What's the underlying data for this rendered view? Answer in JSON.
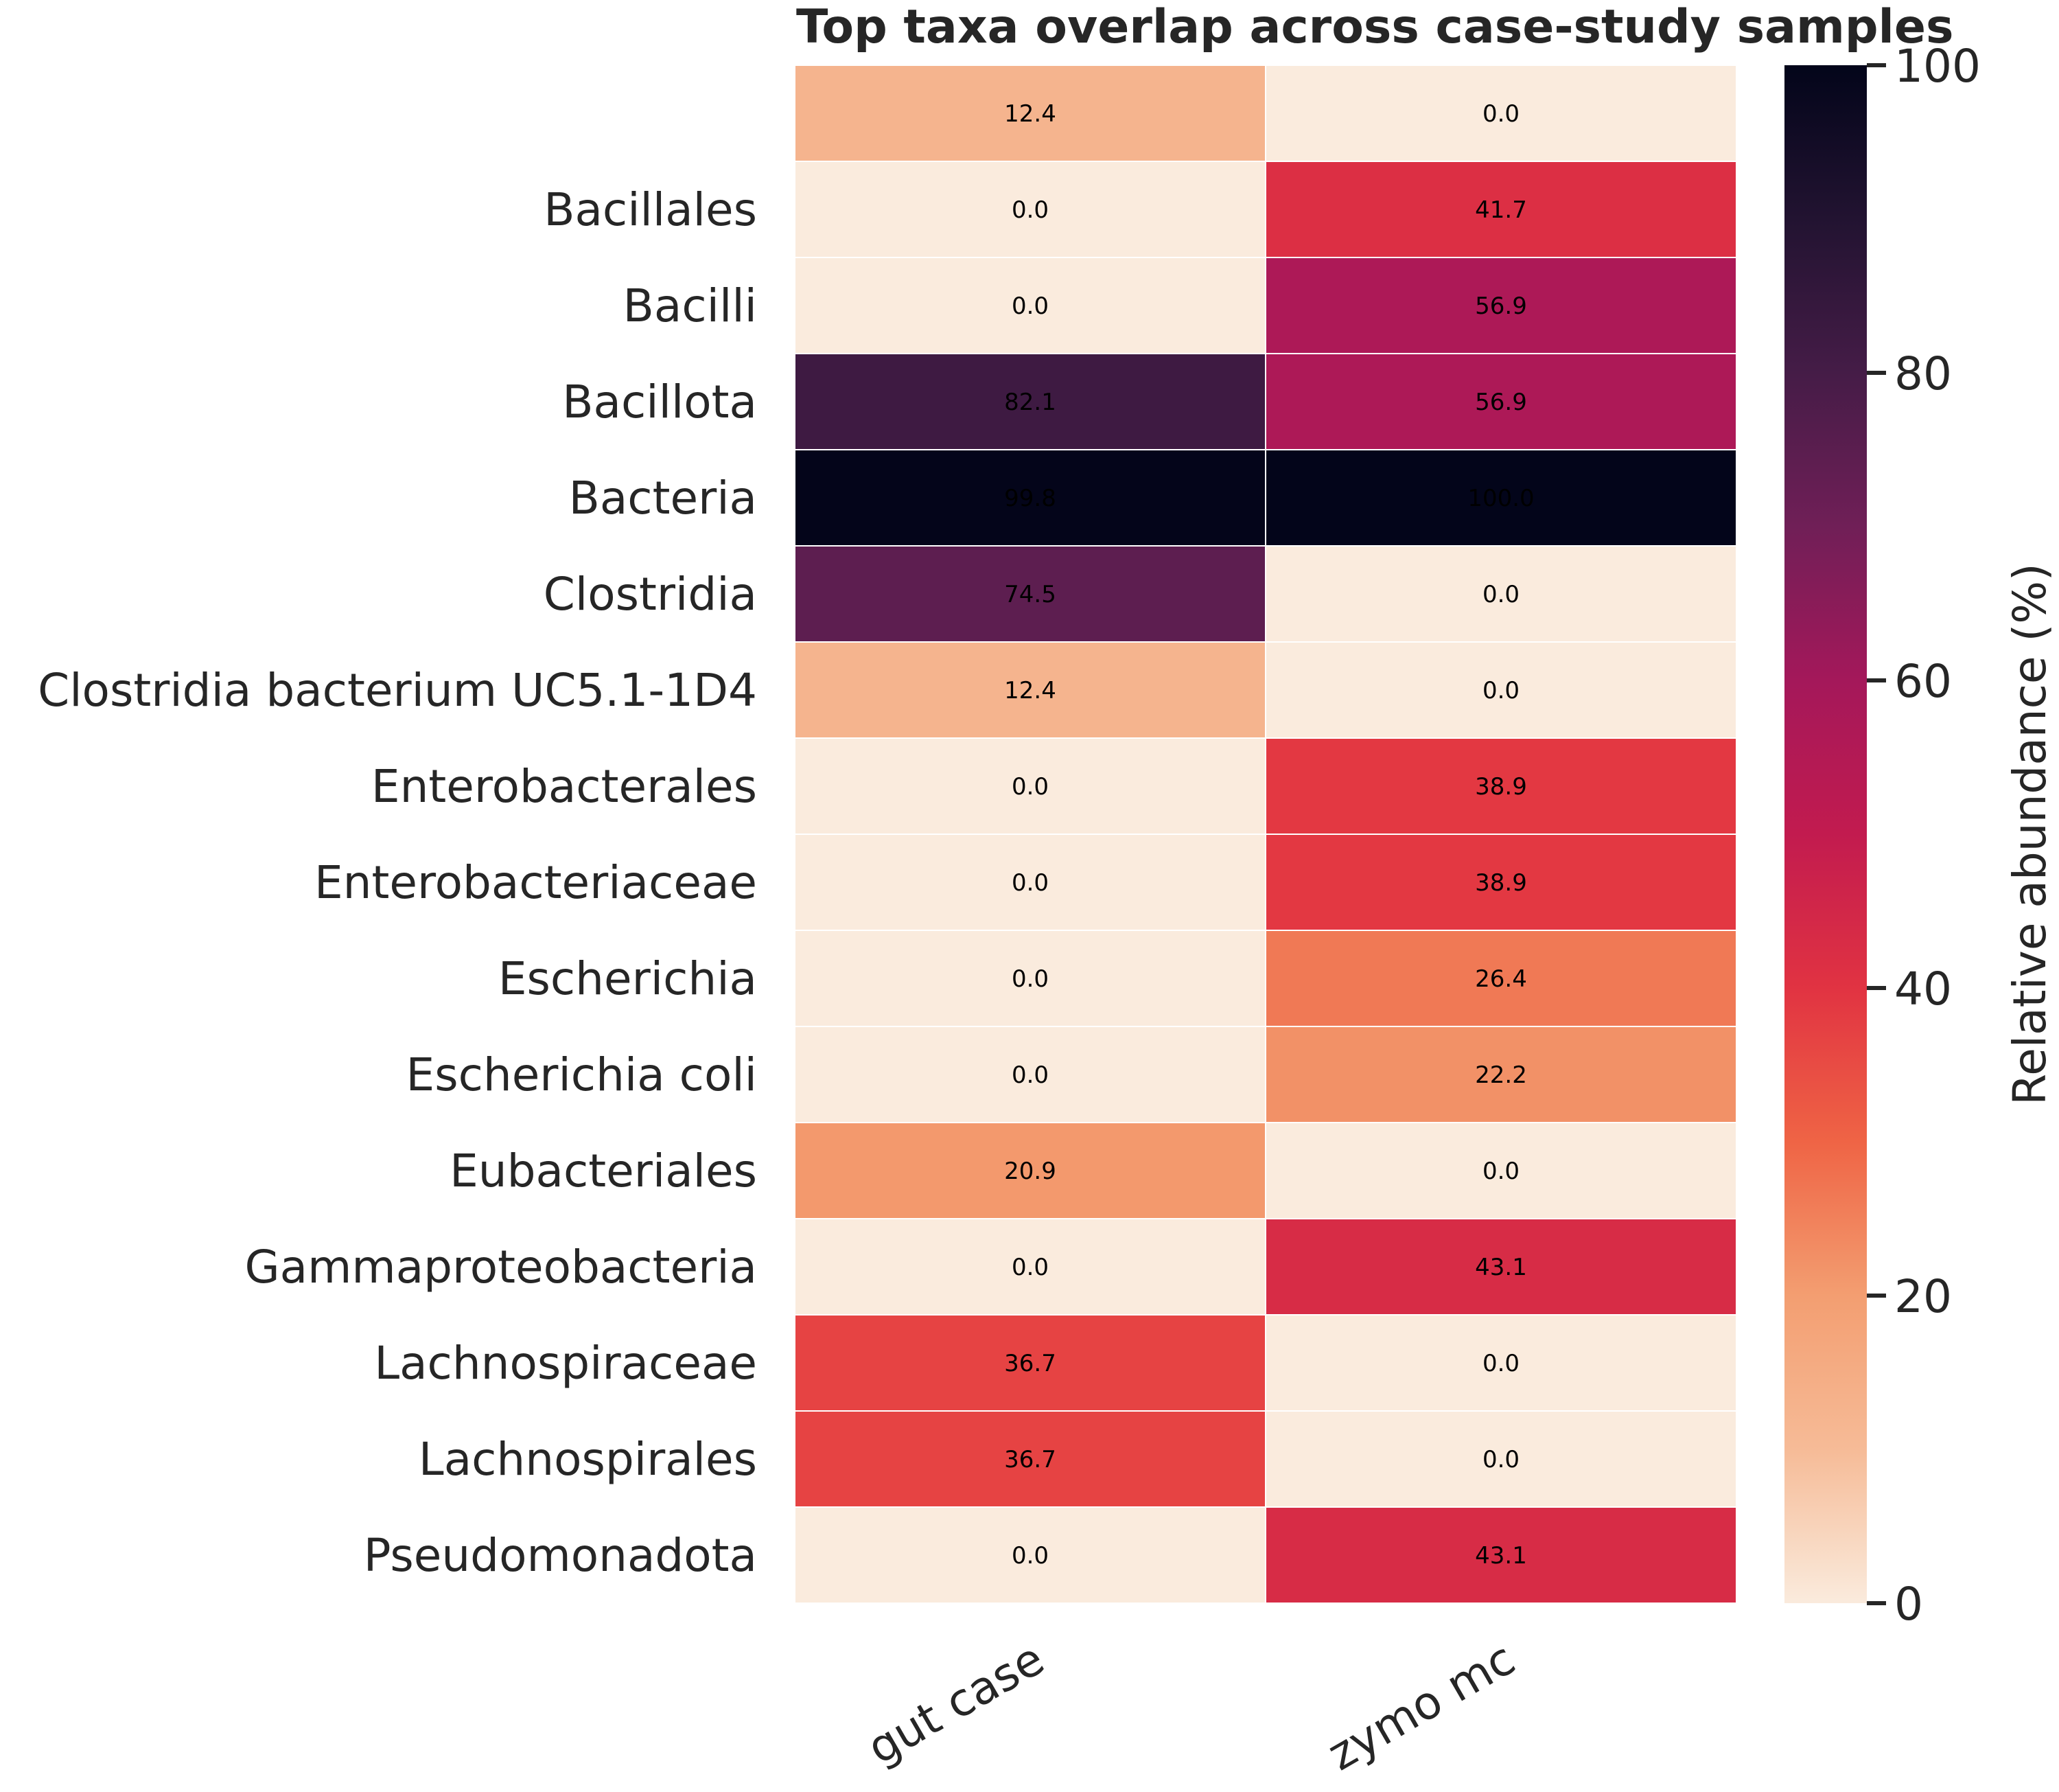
{
  "chart_data": {
    "type": "heatmap",
    "title": "Top taxa overlap across case-study samples",
    "xlabel": "",
    "ylabel": "",
    "columns": [
      "gut case",
      "zymo mc"
    ],
    "rows": [
      {
        "label": "",
        "values": [
          12.4,
          0.0
        ]
      },
      {
        "label": "Bacillales",
        "values": [
          0.0,
          41.7
        ]
      },
      {
        "label": "Bacilli",
        "values": [
          0.0,
          56.9
        ]
      },
      {
        "label": "Bacillota",
        "values": [
          82.1,
          56.9
        ]
      },
      {
        "label": "Bacteria",
        "values": [
          99.8,
          100.0
        ]
      },
      {
        "label": "Clostridia",
        "values": [
          74.5,
          0.0
        ]
      },
      {
        "label": "Clostridia bacterium UC5.1-1D4",
        "values": [
          12.4,
          0.0
        ]
      },
      {
        "label": "Enterobacterales",
        "values": [
          0.0,
          38.9
        ]
      },
      {
        "label": "Enterobacteriaceae",
        "values": [
          0.0,
          38.9
        ]
      },
      {
        "label": "Escherichia",
        "values": [
          0.0,
          26.4
        ]
      },
      {
        "label": "Escherichia coli",
        "values": [
          0.0,
          22.2
        ]
      },
      {
        "label": "Eubacteriales",
        "values": [
          20.9,
          0.0
        ]
      },
      {
        "label": "Gammaproteobacteria",
        "values": [
          0.0,
          43.1
        ]
      },
      {
        "label": "Lachnospiraceae",
        "values": [
          36.7,
          0.0
        ]
      },
      {
        "label": "Lachnospirales",
        "values": [
          36.7,
          0.0
        ]
      },
      {
        "label": "Pseudomonadota",
        "values": [
          0.0,
          43.1
        ]
      }
    ],
    "colorbar": {
      "label": "Relative abundance (%)",
      "range": [
        0,
        100
      ],
      "ticks": [
        "0",
        "20",
        "40",
        "60",
        "80",
        "100"
      ],
      "colormap": "rocket_r"
    },
    "value_format": "one decimal"
  }
}
